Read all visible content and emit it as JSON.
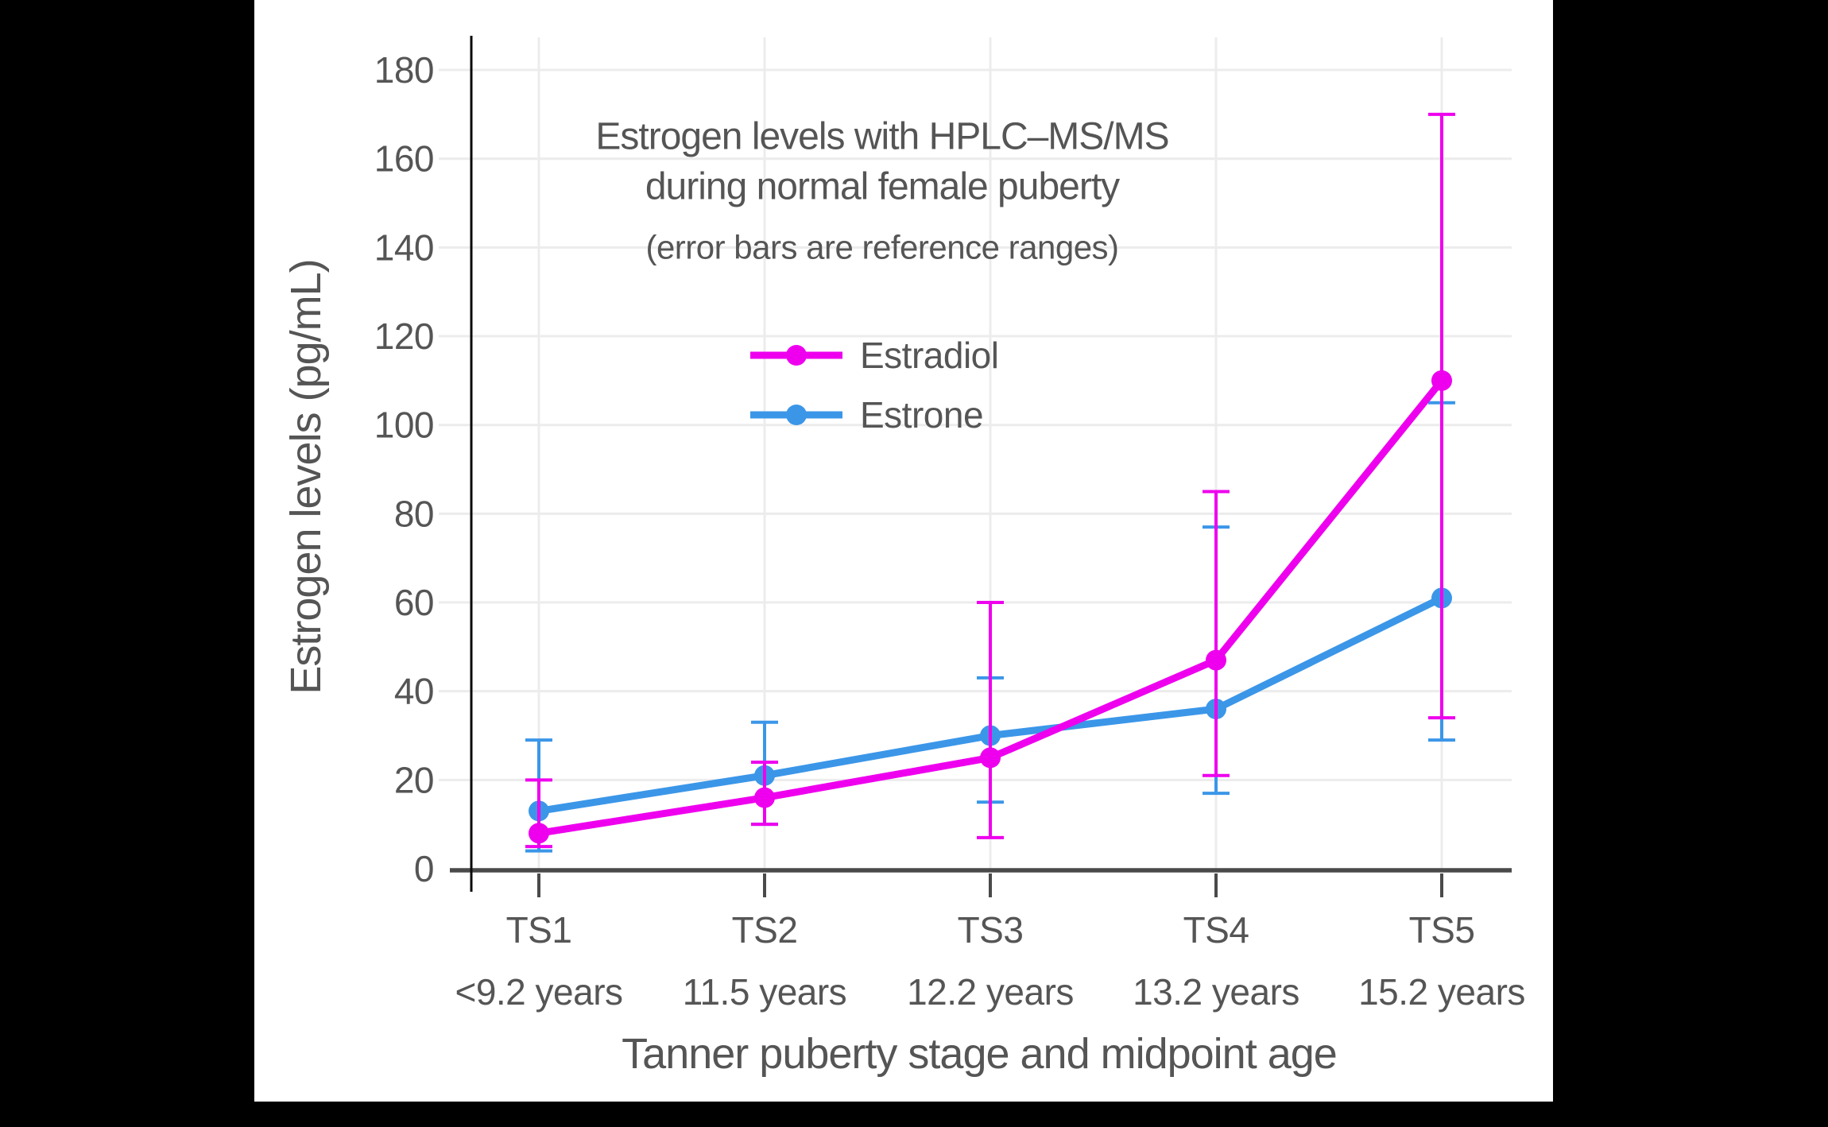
{
  "page": {
    "background_color": "#000000",
    "panel_color": "#ffffff",
    "text_color": "#555555",
    "axis_line_color": "#4a4a4a",
    "spine_color": "#0a0a0a",
    "gridline_color": "#ececec"
  },
  "chart_data": {
    "type": "line",
    "title": "Estrogen levels with HPLC–MS/MS",
    "title_line2": "during normal female puberty",
    "subtitle": "(error bars are reference ranges)",
    "xlabel": "Tanner puberty stage and midpoint age",
    "ylabel": "Estrogen levels (pg/mL)",
    "categories": [
      "TS1",
      "TS2",
      "TS3",
      "TS4",
      "TS5"
    ],
    "category_sublabels": [
      "<9.2 years",
      "11.5 years",
      "12.2 years",
      "13.2 years",
      "15.2 years"
    ],
    "y_ticks": [
      0,
      20,
      40,
      60,
      80,
      100,
      120,
      140,
      160,
      180
    ],
    "ylim": [
      0,
      188
    ],
    "grid": true,
    "legend_position": "upper-center",
    "legend_order": [
      "Estradiol",
      "Estrone"
    ],
    "series": [
      {
        "name": "Estrone",
        "color": "#3B96E8",
        "values": [
          13,
          21,
          30,
          36,
          61
        ],
        "error_low": [
          4,
          10,
          15,
          17,
          29
        ],
        "error_high": [
          29,
          33,
          43,
          77,
          105
        ]
      },
      {
        "name": "Estradiol",
        "color": "#EE00EE",
        "values": [
          8,
          16,
          25,
          47,
          110
        ],
        "error_low": [
          5,
          10,
          7,
          21,
          34
        ],
        "error_high": [
          20,
          24,
          60,
          85,
          170
        ]
      }
    ]
  }
}
